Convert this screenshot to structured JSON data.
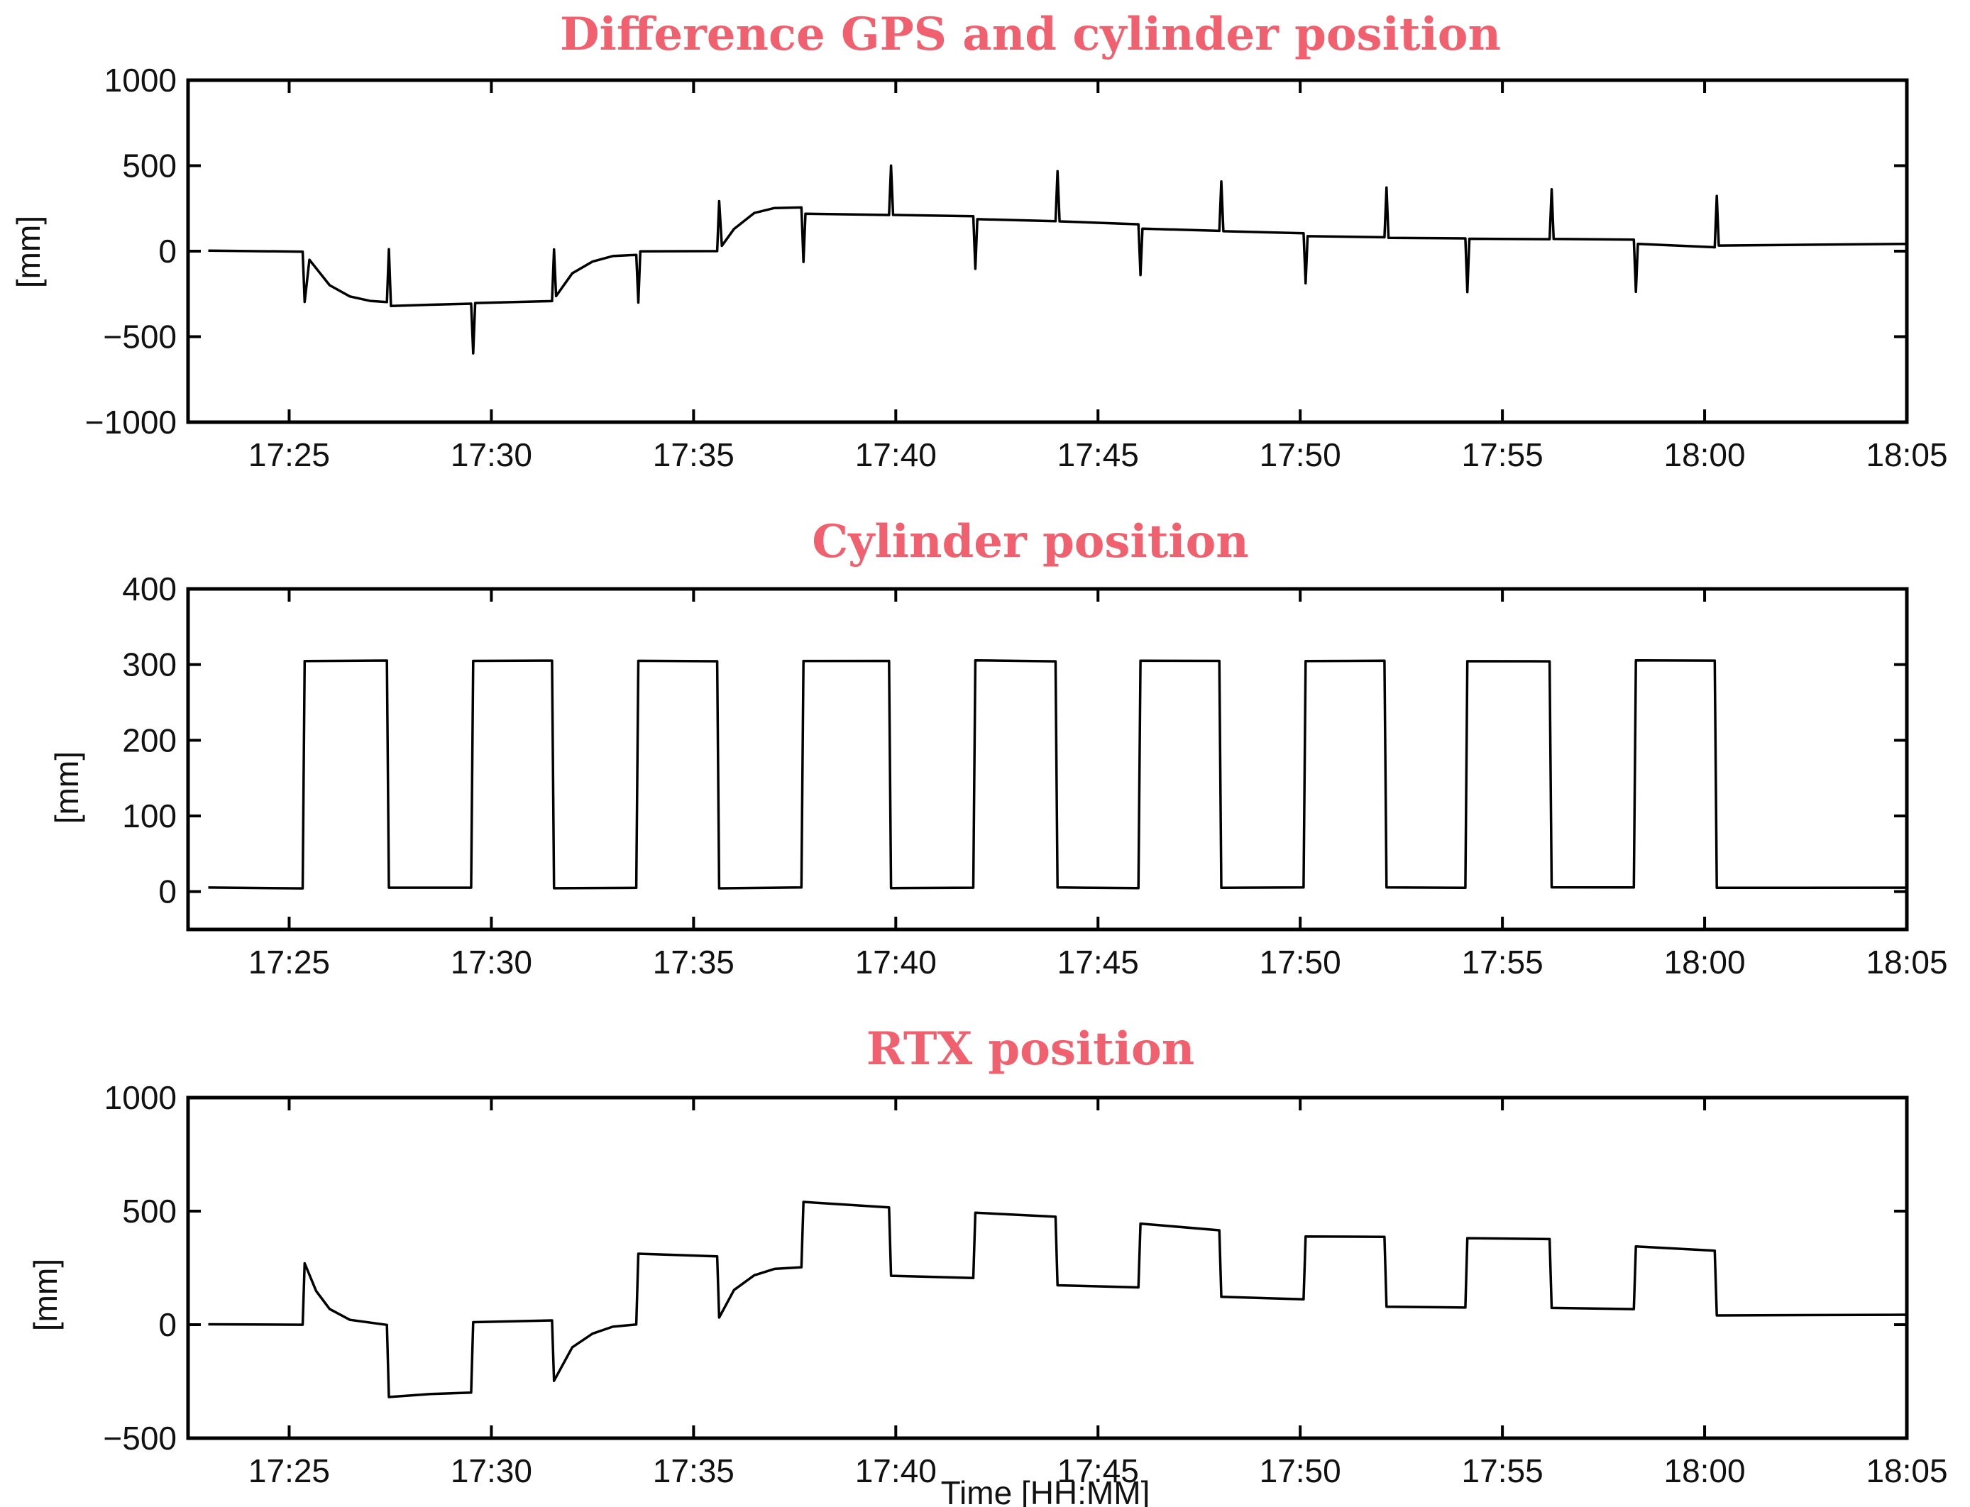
{
  "chart_data": [
    {
      "type": "line",
      "title": "Difference GPS and cylinder position",
      "xlabel": "",
      "ylabel": "[mm]",
      "xlim": [
        "17:22:30",
        "18:05:00"
      ],
      "ylim": [
        -1000,
        1000
      ],
      "x_ticks": [
        "17:25",
        "17:30",
        "17:35",
        "17:40",
        "17:45",
        "17:50",
        "17:55",
        "18:00",
        "18:05"
      ],
      "y_ticks": [
        -1000,
        -500,
        0,
        500,
        1000
      ],
      "series": [
        {
          "values": [
            [
              "17:23:00",
              0
            ],
            [
              "17:25:20",
              0
            ],
            [
              "17:25:23",
              -300
            ],
            [
              "17:25:30",
              -50
            ],
            [
              "17:26:00",
              -200
            ],
            [
              "17:26:30",
              -265
            ],
            [
              "17:27:00",
              -290
            ],
            [
              "17:27:25",
              -300
            ],
            [
              "17:27:28",
              10
            ],
            [
              "17:27:31",
              -320
            ],
            [
              "17:28:30",
              -310
            ],
            [
              "17:29:30",
              -305
            ],
            [
              "17:29:33",
              -600
            ],
            [
              "17:29:36",
              -300
            ],
            [
              "17:31:30",
              -290
            ],
            [
              "17:31:33",
              10
            ],
            [
              "17:31:36",
              -260
            ],
            [
              "17:32:00",
              -130
            ],
            [
              "17:32:30",
              -60
            ],
            [
              "17:33:00",
              -30
            ],
            [
              "17:33:35",
              -20
            ],
            [
              "17:33:38",
              -300
            ],
            [
              "17:33:41",
              0
            ],
            [
              "17:35:35",
              0
            ],
            [
              "17:35:38",
              290
            ],
            [
              "17:35:42",
              30
            ],
            [
              "17:36:00",
              130
            ],
            [
              "17:36:30",
              220
            ],
            [
              "17:37:00",
              250
            ],
            [
              "17:37:40",
              255
            ],
            [
              "17:37:43",
              -60
            ],
            [
              "17:37:46",
              220
            ],
            [
              "17:39:50",
              210
            ],
            [
              "17:39:53",
              500
            ],
            [
              "17:39:56",
              210
            ],
            [
              "17:41:55",
              205
            ],
            [
              "17:41:58",
              -100
            ],
            [
              "17:42:01",
              190
            ],
            [
              "17:43:57",
              175
            ],
            [
              "17:44:00",
              470
            ],
            [
              "17:44:03",
              175
            ],
            [
              "17:46:00",
              160
            ],
            [
              "17:46:03",
              -140
            ],
            [
              "17:46:06",
              130
            ],
            [
              "17:48:00",
              120
            ],
            [
              "17:48:03",
              410
            ],
            [
              "17:48:06",
              115
            ],
            [
              "17:50:05",
              105
            ],
            [
              "17:50:08",
              -190
            ],
            [
              "17:50:11",
              85
            ],
            [
              "17:52:05",
              80
            ],
            [
              "17:52:08",
              370
            ],
            [
              "17:52:11",
              80
            ],
            [
              "17:54:05",
              75
            ],
            [
              "17:54:08",
              -240
            ],
            [
              "17:54:11",
              75
            ],
            [
              "17:56:10",
              70
            ],
            [
              "17:56:13",
              360
            ],
            [
              "17:56:16",
              70
            ],
            [
              "17:58:15",
              65
            ],
            [
              "17:58:18",
              -240
            ],
            [
              "17:58:21",
              40
            ],
            [
              "18:00:15",
              25
            ],
            [
              "18:00:18",
              320
            ],
            [
              "18:00:21",
              30
            ],
            [
              "18:05:00",
              40
            ]
          ]
        }
      ]
    },
    {
      "type": "line",
      "title": "Cylinder position",
      "xlabel": "",
      "ylabel": "[mm]",
      "xlim": [
        "17:22:30",
        "18:05:00"
      ],
      "ylim": [
        -50,
        400
      ],
      "x_ticks": [
        "17:25",
        "17:30",
        "17:35",
        "17:40",
        "17:45",
        "17:50",
        "17:55",
        "18:00",
        "18:05"
      ],
      "y_ticks": [
        0,
        100,
        200,
        300,
        400
      ],
      "series": [
        {
          "values": [
            [
              "17:23:00",
              5
            ],
            [
              "17:25:20",
              5
            ],
            [
              "17:25:23",
              305
            ],
            [
              "17:27:25",
              305
            ],
            [
              "17:27:28",
              5
            ],
            [
              "17:29:30",
              5
            ],
            [
              "17:29:33",
              305
            ],
            [
              "17:31:30",
              305
            ],
            [
              "17:31:33",
              5
            ],
            [
              "17:33:35",
              5
            ],
            [
              "17:33:38",
              305
            ],
            [
              "17:35:35",
              305
            ],
            [
              "17:35:38",
              5
            ],
            [
              "17:37:40",
              5
            ],
            [
              "17:37:43",
              305
            ],
            [
              "17:39:50",
              305
            ],
            [
              "17:39:53",
              5
            ],
            [
              "17:41:55",
              5
            ],
            [
              "17:41:58",
              305
            ],
            [
              "17:43:57",
              305
            ],
            [
              "17:44:00",
              5
            ],
            [
              "17:46:00",
              5
            ],
            [
              "17:46:03",
              305
            ],
            [
              "17:48:00",
              305
            ],
            [
              "17:48:03",
              5
            ],
            [
              "17:50:05",
              5
            ],
            [
              "17:50:08",
              305
            ],
            [
              "17:52:05",
              305
            ],
            [
              "17:52:08",
              5
            ],
            [
              "17:54:05",
              5
            ],
            [
              "17:54:08",
              305
            ],
            [
              "17:56:10",
              305
            ],
            [
              "17:56:13",
              5
            ],
            [
              "17:58:15",
              5
            ],
            [
              "17:58:18",
              305
            ],
            [
              "18:00:15",
              305
            ],
            [
              "18:00:18",
              5
            ],
            [
              "18:05:00",
              5
            ]
          ]
        }
      ]
    },
    {
      "type": "line",
      "title": "RTX position",
      "xlabel": "Time [HH:MM]",
      "ylabel": "[mm]",
      "xlim": [
        "17:22:30",
        "18:05:00"
      ],
      "ylim": [
        -500,
        1000
      ],
      "x_ticks": [
        "17:25",
        "17:30",
        "17:35",
        "17:40",
        "17:45",
        "17:50",
        "17:55",
        "18:00",
        "18:05"
      ],
      "y_ticks": [
        -500,
        0,
        500,
        1000
      ],
      "series": [
        {
          "values": [
            [
              "17:23:00",
              0
            ],
            [
              "17:25:20",
              0
            ],
            [
              "17:25:23",
              270
            ],
            [
              "17:25:40",
              150
            ],
            [
              "17:26:00",
              70
            ],
            [
              "17:26:30",
              20
            ],
            [
              "17:27:25",
              0
            ],
            [
              "17:27:28",
              -320
            ],
            [
              "17:28:30",
              -305
            ],
            [
              "17:29:30",
              -300
            ],
            [
              "17:29:33",
              10
            ],
            [
              "17:31:30",
              20
            ],
            [
              "17:31:33",
              -250
            ],
            [
              "17:32:00",
              -100
            ],
            [
              "17:32:30",
              -40
            ],
            [
              "17:33:00",
              -10
            ],
            [
              "17:33:35",
              0
            ],
            [
              "17:33:38",
              310
            ],
            [
              "17:35:35",
              300
            ],
            [
              "17:35:38",
              30
            ],
            [
              "17:36:00",
              150
            ],
            [
              "17:36:30",
              220
            ],
            [
              "17:37:00",
              245
            ],
            [
              "17:37:40",
              255
            ],
            [
              "17:37:43",
              540
            ],
            [
              "17:39:50",
              515
            ],
            [
              "17:39:53",
              215
            ],
            [
              "17:41:55",
              205
            ],
            [
              "17:41:58",
              495
            ],
            [
              "17:43:57",
              475
            ],
            [
              "17:44:00",
              175
            ],
            [
              "17:46:00",
              165
            ],
            [
              "17:46:03",
              445
            ],
            [
              "17:48:00",
              415
            ],
            [
              "17:48:03",
              120
            ],
            [
              "17:50:05",
              110
            ],
            [
              "17:50:08",
              390
            ],
            [
              "17:52:05",
              385
            ],
            [
              "17:52:08",
              80
            ],
            [
              "17:54:05",
              75
            ],
            [
              "17:54:08",
              380
            ],
            [
              "17:56:10",
              375
            ],
            [
              "17:56:13",
              75
            ],
            [
              "17:58:15",
              70
            ],
            [
              "17:58:18",
              345
            ],
            [
              "18:00:15",
              325
            ],
            [
              "18:00:18",
              40
            ],
            [
              "18:05:00",
              45
            ]
          ]
        }
      ]
    }
  ]
}
